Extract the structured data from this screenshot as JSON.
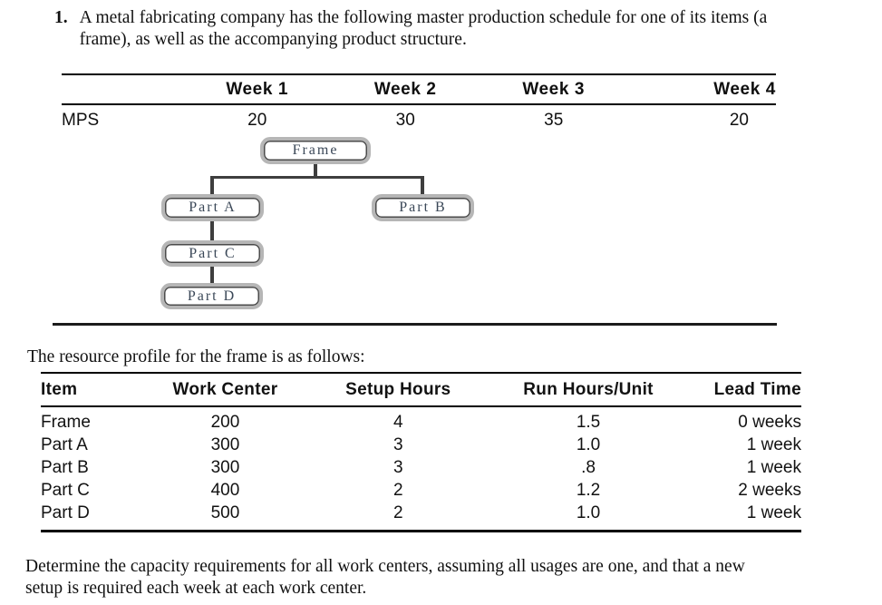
{
  "problem": {
    "number": "1.",
    "lines": [
      "A metal fabricating company has the following master production schedule for one of its items (a",
      "frame), as well as the accompanying product structure."
    ]
  },
  "mps_table": {
    "row_label": "MPS",
    "columns": [
      "Week 1",
      "Week 2",
      "Week 3",
      "Week 4"
    ],
    "values": [
      "20",
      "30",
      "35",
      "20"
    ]
  },
  "product_structure": {
    "nodes": [
      {
        "id": "frame",
        "label": "Frame"
      },
      {
        "id": "part-a",
        "label": "Part A"
      },
      {
        "id": "part-b",
        "label": "Part B"
      },
      {
        "id": "part-c",
        "label": "Part C"
      },
      {
        "id": "part-d",
        "label": "Part D"
      }
    ],
    "edges": [
      [
        "Frame",
        "Part A"
      ],
      [
        "Frame",
        "Part B"
      ],
      [
        "Part A",
        "Part C"
      ],
      [
        "Part C",
        "Part D"
      ]
    ]
  },
  "resource_profile": {
    "intro": "The resource profile for the frame is as follows:",
    "headers": [
      "Item",
      "Work Center",
      "Setup Hours",
      "Run Hours/Unit",
      "Lead Time"
    ],
    "rows": [
      [
        "Frame",
        "200",
        "4",
        "1.5",
        "0 weeks"
      ],
      [
        "Part A",
        "300",
        "3",
        "1.0",
        "1 week"
      ],
      [
        "Part B",
        "300",
        "3",
        ".8",
        "1 week"
      ],
      [
        "Part C",
        "400",
        "2",
        "1.2",
        "2 weeks"
      ],
      [
        "Part D",
        "500",
        "2",
        "1.0",
        "1 week"
      ]
    ]
  },
  "instructions": {
    "lines": [
      "Determine the capacity requirements for all work centers, assuming all usages are one, and that a new",
      "setup is required each week at each work center."
    ]
  },
  "colors": {
    "node_border": "#b6b6b6",
    "node_inner_line": "#4b4b4b",
    "node_text": "#3a4757",
    "connector": "#3e3e3e",
    "rule": "#000000",
    "background": "#ffffff"
  }
}
